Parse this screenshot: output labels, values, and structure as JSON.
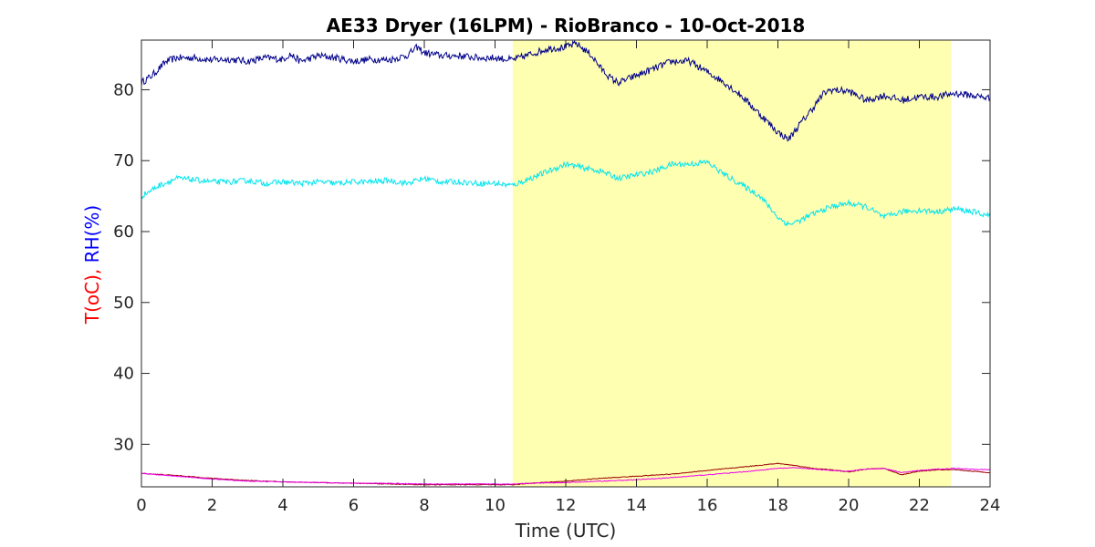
{
  "chart_data": {
    "type": "line",
    "title": "AE33 Dryer (16LPM)  - RioBranco - 10-Oct-2018",
    "xlabel": "Time (UTC)",
    "ylabel_parts": [
      {
        "text": "T(oC), ",
        "color": "#ff0000"
      },
      {
        "text": "RH(%)",
        "color": "#0000ff"
      }
    ],
    "xlim": [
      0,
      24
    ],
    "ylim": [
      24,
      87
    ],
    "x_ticks": [
      0,
      2,
      4,
      6,
      8,
      10,
      12,
      14,
      16,
      18,
      20,
      22,
      24
    ],
    "y_ticks": [
      30,
      40,
      50,
      60,
      70,
      80
    ],
    "grid": false,
    "shaded_region": {
      "x_start": 10.5,
      "x_end": 22.9,
      "color": "#ffffb2"
    },
    "series": [
      {
        "color": "#00008b",
        "noise": 0.5,
        "x": [
          0,
          0.3,
          0.7,
          1.0,
          1.5,
          2.0,
          2.5,
          3.0,
          3.5,
          4.0,
          4.2,
          4.5,
          5.0,
          5.5,
          6.0,
          6.5,
          7.0,
          7.5,
          7.8,
          8.0,
          8.5,
          9.0,
          9.5,
          10.0,
          10.5,
          11.0,
          11.5,
          12.0,
          12.3,
          12.7,
          13.0,
          13.3,
          13.5,
          14.0,
          14.5,
          15.0,
          15.5,
          16.0,
          16.5,
          17.0,
          17.5,
          18.0,
          18.3,
          18.6,
          19.0,
          19.3,
          19.5,
          20.0,
          20.5,
          21.0,
          21.5,
          22.0,
          22.5,
          23.0,
          23.5,
          24.0
        ],
        "y": [
          81.0,
          82.0,
          84.0,
          84.5,
          84.5,
          84.2,
          84.3,
          84.0,
          84.5,
          84.3,
          85.0,
          84.0,
          84.8,
          84.5,
          84.0,
          84.3,
          84.2,
          84.8,
          86.0,
          85.2,
          84.8,
          84.8,
          84.5,
          84.5,
          84.2,
          85.0,
          85.8,
          86.0,
          86.5,
          85.0,
          83.0,
          81.5,
          81.0,
          82.0,
          83.0,
          84.0,
          84.0,
          82.5,
          81.0,
          79.0,
          76.5,
          74.0,
          73.0,
          75.0,
          77.5,
          79.5,
          80.0,
          79.8,
          78.5,
          79.2,
          78.5,
          79.0,
          79.0,
          79.5,
          79.2,
          78.8
        ]
      },
      {
        "color": "#00e5ee",
        "noise": 0.4,
        "x": [
          0,
          0.5,
          1.0,
          1.5,
          2.0,
          2.5,
          3.0,
          3.5,
          4.0,
          4.5,
          5.0,
          5.5,
          6.0,
          6.5,
          7.0,
          7.5,
          8.0,
          8.5,
          9.0,
          9.5,
          10.0,
          10.5,
          11.0,
          11.5,
          12.0,
          12.5,
          13.0,
          13.5,
          14.0,
          14.5,
          15.0,
          15.5,
          16.0,
          16.5,
          17.0,
          17.5,
          18.0,
          18.3,
          18.6,
          19.0,
          19.5,
          20.0,
          20.5,
          21.0,
          21.5,
          22.0,
          22.5,
          23.0,
          23.5,
          24.0
        ],
        "y": [
          65.0,
          66.5,
          67.5,
          67.3,
          67.0,
          67.0,
          67.2,
          66.8,
          67.0,
          66.8,
          67.0,
          66.8,
          67.0,
          67.0,
          67.2,
          66.8,
          67.5,
          67.0,
          67.0,
          66.8,
          66.8,
          66.5,
          67.5,
          68.5,
          69.5,
          69.0,
          68.5,
          67.5,
          68.0,
          68.5,
          69.5,
          69.5,
          69.8,
          68.0,
          66.5,
          65.0,
          62.0,
          61.0,
          61.5,
          62.5,
          63.5,
          64.0,
          63.5,
          62.0,
          62.8,
          63.0,
          62.8,
          63.2,
          62.8,
          62.2
        ]
      },
      {
        "color": "#990000",
        "noise": 0.05,
        "x": [
          0,
          1,
          2,
          3,
          4,
          5,
          6,
          7,
          8,
          9,
          10,
          10.5,
          11,
          12,
          13,
          14,
          15,
          16,
          17,
          18,
          18.5,
          19,
          19.5,
          20,
          20.5,
          21,
          21.5,
          22,
          22.5,
          23,
          24
        ],
        "y": [
          25.9,
          25.6,
          25.2,
          24.9,
          24.7,
          24.6,
          24.5,
          24.4,
          24.3,
          24.3,
          24.3,
          24.3,
          24.5,
          24.8,
          25.2,
          25.5,
          25.8,
          26.3,
          26.8,
          27.3,
          27.0,
          26.6,
          26.4,
          26.1,
          26.5,
          26.6,
          25.7,
          26.2,
          26.4,
          26.4,
          26.0
        ]
      },
      {
        "color": "#ee00ee",
        "noise": 0.05,
        "x": [
          0,
          1,
          2,
          3,
          4,
          5,
          6,
          7,
          8,
          9,
          10,
          10.5,
          11,
          12,
          13,
          14,
          15,
          16,
          17,
          18,
          18.5,
          19,
          19.5,
          20,
          20.5,
          21,
          21.5,
          22,
          22.5,
          23,
          24
        ],
        "y": [
          25.9,
          25.5,
          25.1,
          24.8,
          24.7,
          24.6,
          24.5,
          24.5,
          24.4,
          24.4,
          24.4,
          24.4,
          24.5,
          24.6,
          24.8,
          25.0,
          25.3,
          25.7,
          26.1,
          26.6,
          26.7,
          26.5,
          26.3,
          26.2,
          26.5,
          26.6,
          26.0,
          26.3,
          26.5,
          26.6,
          26.4
        ]
      }
    ]
  }
}
